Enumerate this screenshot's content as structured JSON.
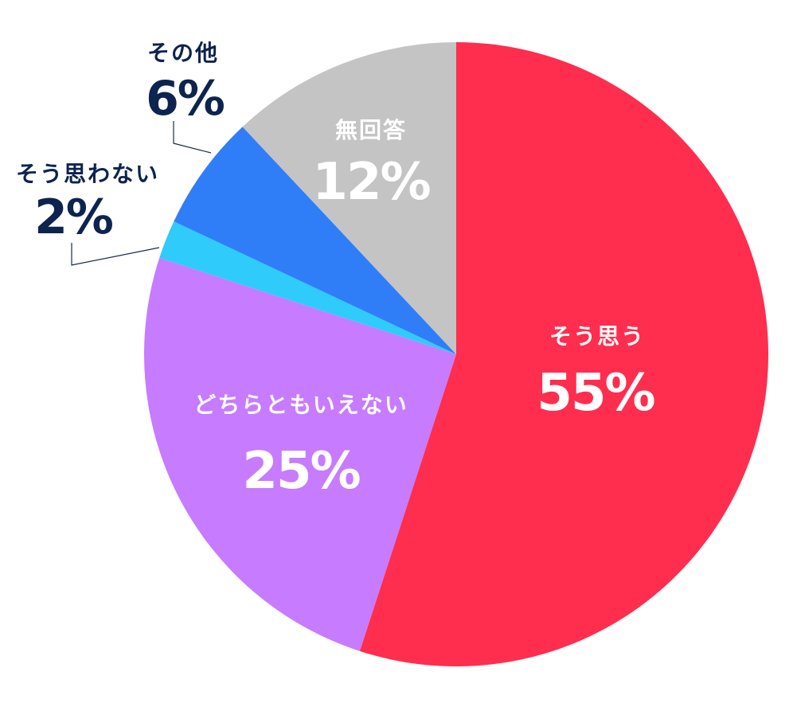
{
  "chart_data": {
    "type": "pie",
    "start_angle_deg": 0,
    "direction": "clockwise",
    "slices": [
      {
        "label": "そう思う",
        "value": 55,
        "value_label": "55%",
        "color": "#ff2d4e",
        "label_color": "#ffffff"
      },
      {
        "label": "どちらともいえない",
        "value": 25,
        "value_label": "25%",
        "color": "#c77bff",
        "label_color": "#ffffff"
      },
      {
        "label": "そう思わない",
        "value": 2,
        "value_label": "2%",
        "color": "#2ecbfb",
        "label_color": "#0d2350"
      },
      {
        "label": "その他",
        "value": 6,
        "value_label": "6%",
        "color": "#2f7ef7",
        "label_color": "#0d2350"
      },
      {
        "label": "無回答",
        "value": 12,
        "value_label": "12%",
        "color": "#c4c4c4",
        "label_color": "#ffffff"
      }
    ]
  }
}
